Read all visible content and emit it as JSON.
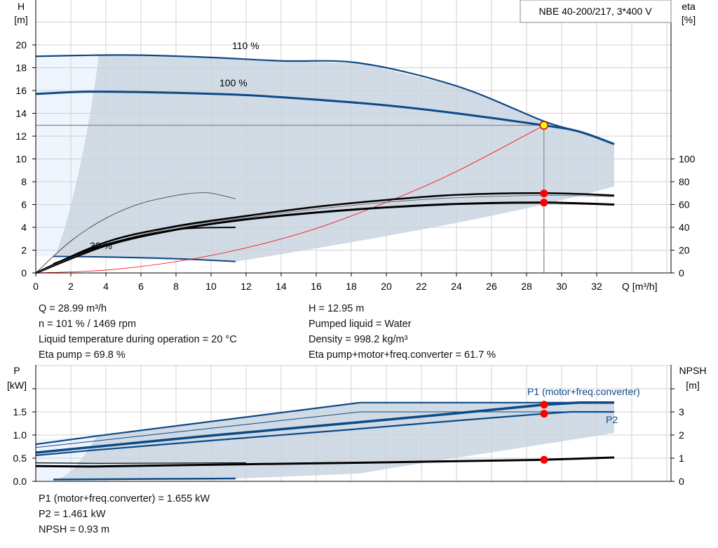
{
  "title_box": "NBE 40-200/217, 3*400 V",
  "chart_data": [
    {
      "type": "line",
      "xlabel": "Q [m³/h]",
      "ylabel": "H\n[m]",
      "y2label": "eta\n[%]",
      "xlim": [
        0,
        36
      ],
      "ylim": [
        0,
        24
      ],
      "y2lim": [
        0,
        100
      ],
      "xticks": [
        0,
        2,
        4,
        6,
        8,
        10,
        12,
        14,
        16,
        18,
        20,
        22,
        24,
        26,
        28,
        30,
        32
      ],
      "yticks": [
        0,
        2,
        4,
        6,
        8,
        10,
        12,
        14,
        16,
        18,
        20
      ],
      "y2ticks": [
        0,
        20,
        40,
        60,
        80,
        100
      ],
      "grid": true,
      "annotations": [
        "110 %",
        "100 %",
        "30 %"
      ],
      "series": [
        {
          "name": "110 %",
          "axis": "H",
          "points": [
            [
              0,
              19.0
            ],
            [
              3.5,
              19.1
            ],
            [
              6,
              19.1
            ],
            [
              10,
              18.9
            ],
            [
              14,
              18.6
            ],
            [
              18.5,
              18.4
            ],
            [
              24,
              16.4
            ],
            [
              29,
              13.3
            ],
            [
              31,
              12.4
            ],
            [
              33,
              11.3
            ]
          ]
        },
        {
          "name": "100 %",
          "axis": "H",
          "points": [
            [
              0,
              15.7
            ],
            [
              3.2,
              15.9
            ],
            [
              8,
              15.8
            ],
            [
              12,
              15.6
            ],
            [
              16,
              15.2
            ],
            [
              20,
              14.7
            ],
            [
              24,
              14.0
            ],
            [
              29,
              12.95
            ],
            [
              31,
              12.4
            ],
            [
              33,
              11.3
            ]
          ]
        },
        {
          "name": "30 %",
          "axis": "H",
          "points": [
            [
              1,
              1.45
            ],
            [
              4,
              1.4
            ],
            [
              8,
              1.25
            ],
            [
              11.4,
              1.0
            ]
          ]
        },
        {
          "axis": "H",
          "system_curve": true,
          "points": [
            [
              0,
              0
            ],
            [
              4,
              0.25
            ],
            [
              8,
              0.99
            ],
            [
              12,
              2.2
            ],
            [
              16,
              3.9
            ],
            [
              20,
              6.2
            ],
            [
              24,
              8.9
            ],
            [
              29,
              12.95
            ]
          ]
        },
        {
          "axis": "eta",
          "points": [
            [
              0,
              0
            ],
            [
              2,
              28
            ],
            [
              4,
              48
            ],
            [
              6,
              61
            ],
            [
              8,
              68
            ],
            [
              9,
              70
            ],
            [
              10,
              70
            ],
            [
              11.4,
              65
            ]
          ]
        },
        {
          "axis": "eta",
          "points": [
            [
              0,
              0
            ],
            [
              4,
              27
            ],
            [
              8,
              41
            ],
            [
              12,
              50
            ],
            [
              16,
              58
            ],
            [
              20,
              64
            ],
            [
              24,
              68.5
            ],
            [
              29,
              70
            ],
            [
              33,
              68
            ]
          ]
        },
        {
          "axis": "eta",
          "points": [
            [
              0,
              0
            ],
            [
              4,
              24
            ],
            [
              8,
              38
            ],
            [
              12,
              47
            ],
            [
              16,
              53
            ],
            [
              20,
              57.5
            ],
            [
              24,
              60.5
            ],
            [
              29,
              61.7
            ],
            [
              33,
              60
            ]
          ]
        }
      ],
      "operating_point": {
        "Q": 28.99,
        "H": 12.95,
        "eta_pump": 69.8,
        "eta_total": 61.7
      }
    },
    {
      "type": "line",
      "ylabel": "P\n[kW]",
      "y2label": "NPSH\n[m]",
      "xlim": [
        0,
        36
      ],
      "ylim": [
        0,
        2.5
      ],
      "y2lim": [
        0,
        5
      ],
      "yticks": [
        "0.0",
        "0.5",
        "1.0",
        "1.5"
      ],
      "y2ticks": [
        0,
        1,
        2,
        3
      ],
      "grid": true,
      "series": [
        {
          "name": "P1 (motor+freq.converter)",
          "axis": "P",
          "points": [
            [
              0,
              0.62
            ],
            [
              3.2,
              0.74
            ],
            [
              10,
              0.99
            ],
            [
              18,
              1.26
            ],
            [
              24,
              1.47
            ],
            [
              29,
              1.655
            ],
            [
              31,
              1.7
            ],
            [
              33,
              1.7
            ]
          ]
        },
        {
          "axis": "P",
          "points": [
            [
              0,
              0.8
            ],
            [
              3.5,
              0.98
            ],
            [
              18.5,
              1.7
            ],
            [
              33,
              1.7
            ]
          ]
        },
        {
          "name": "P2",
          "axis": "P",
          "points": [
            [
              0,
              0.56
            ],
            [
              3.2,
              0.67
            ],
            [
              10,
              0.88
            ],
            [
              18,
              1.12
            ],
            [
              24,
              1.31
            ],
            [
              29,
              1.461
            ],
            [
              30.5,
              1.5
            ],
            [
              33,
              1.5
            ]
          ]
        },
        {
          "axis": "P",
          "points": [
            [
              0,
              0.73
            ],
            [
              18.5,
              1.5
            ],
            [
              33,
              1.5
            ]
          ]
        },
        {
          "axis": "P",
          "points": [
            [
              1,
              0.04
            ],
            [
              11.4,
              0.06
            ]
          ]
        },
        {
          "axis": "NPSH",
          "points": [
            [
              0,
              0.66
            ],
            [
              3.2,
              0.64
            ],
            [
              12,
              0.74
            ],
            [
              20,
              0.82
            ],
            [
              29,
              0.93
            ],
            [
              33,
              1.03
            ]
          ]
        },
        {
          "axis": "NPSH",
          "points": [
            [
              0,
              0.8
            ],
            [
              3.5,
              0.78
            ],
            [
              12,
              0.8
            ]
          ]
        }
      ],
      "operating_point": {
        "P1": 1.655,
        "P2": 1.461,
        "NPSH": 0.93
      }
    }
  ],
  "info_left": [
    "Q = 28.99 m³/h",
    "n = 101 % / 1469 rpm",
    "Liquid temperature during operation = 20 °C",
    "Eta pump = 69.8 %"
  ],
  "info_right": [
    "H = 12.95 m",
    "Pumped liquid = Water",
    "Density = 998.2 kg/m³",
    "Eta pump+motor+freq.converter = 61.7 %"
  ],
  "info_bottom": [
    "P1 (motor+freq.converter) = 1.655 kW",
    "P2 = 1.461 kW",
    "NPSH = 0.93 m"
  ],
  "colors": {
    "curve": "#0d4a86",
    "shade": "#d0dbe6",
    "light": "#eef5fd",
    "point": "#ff0000",
    "grid": "#d0d0d0"
  }
}
